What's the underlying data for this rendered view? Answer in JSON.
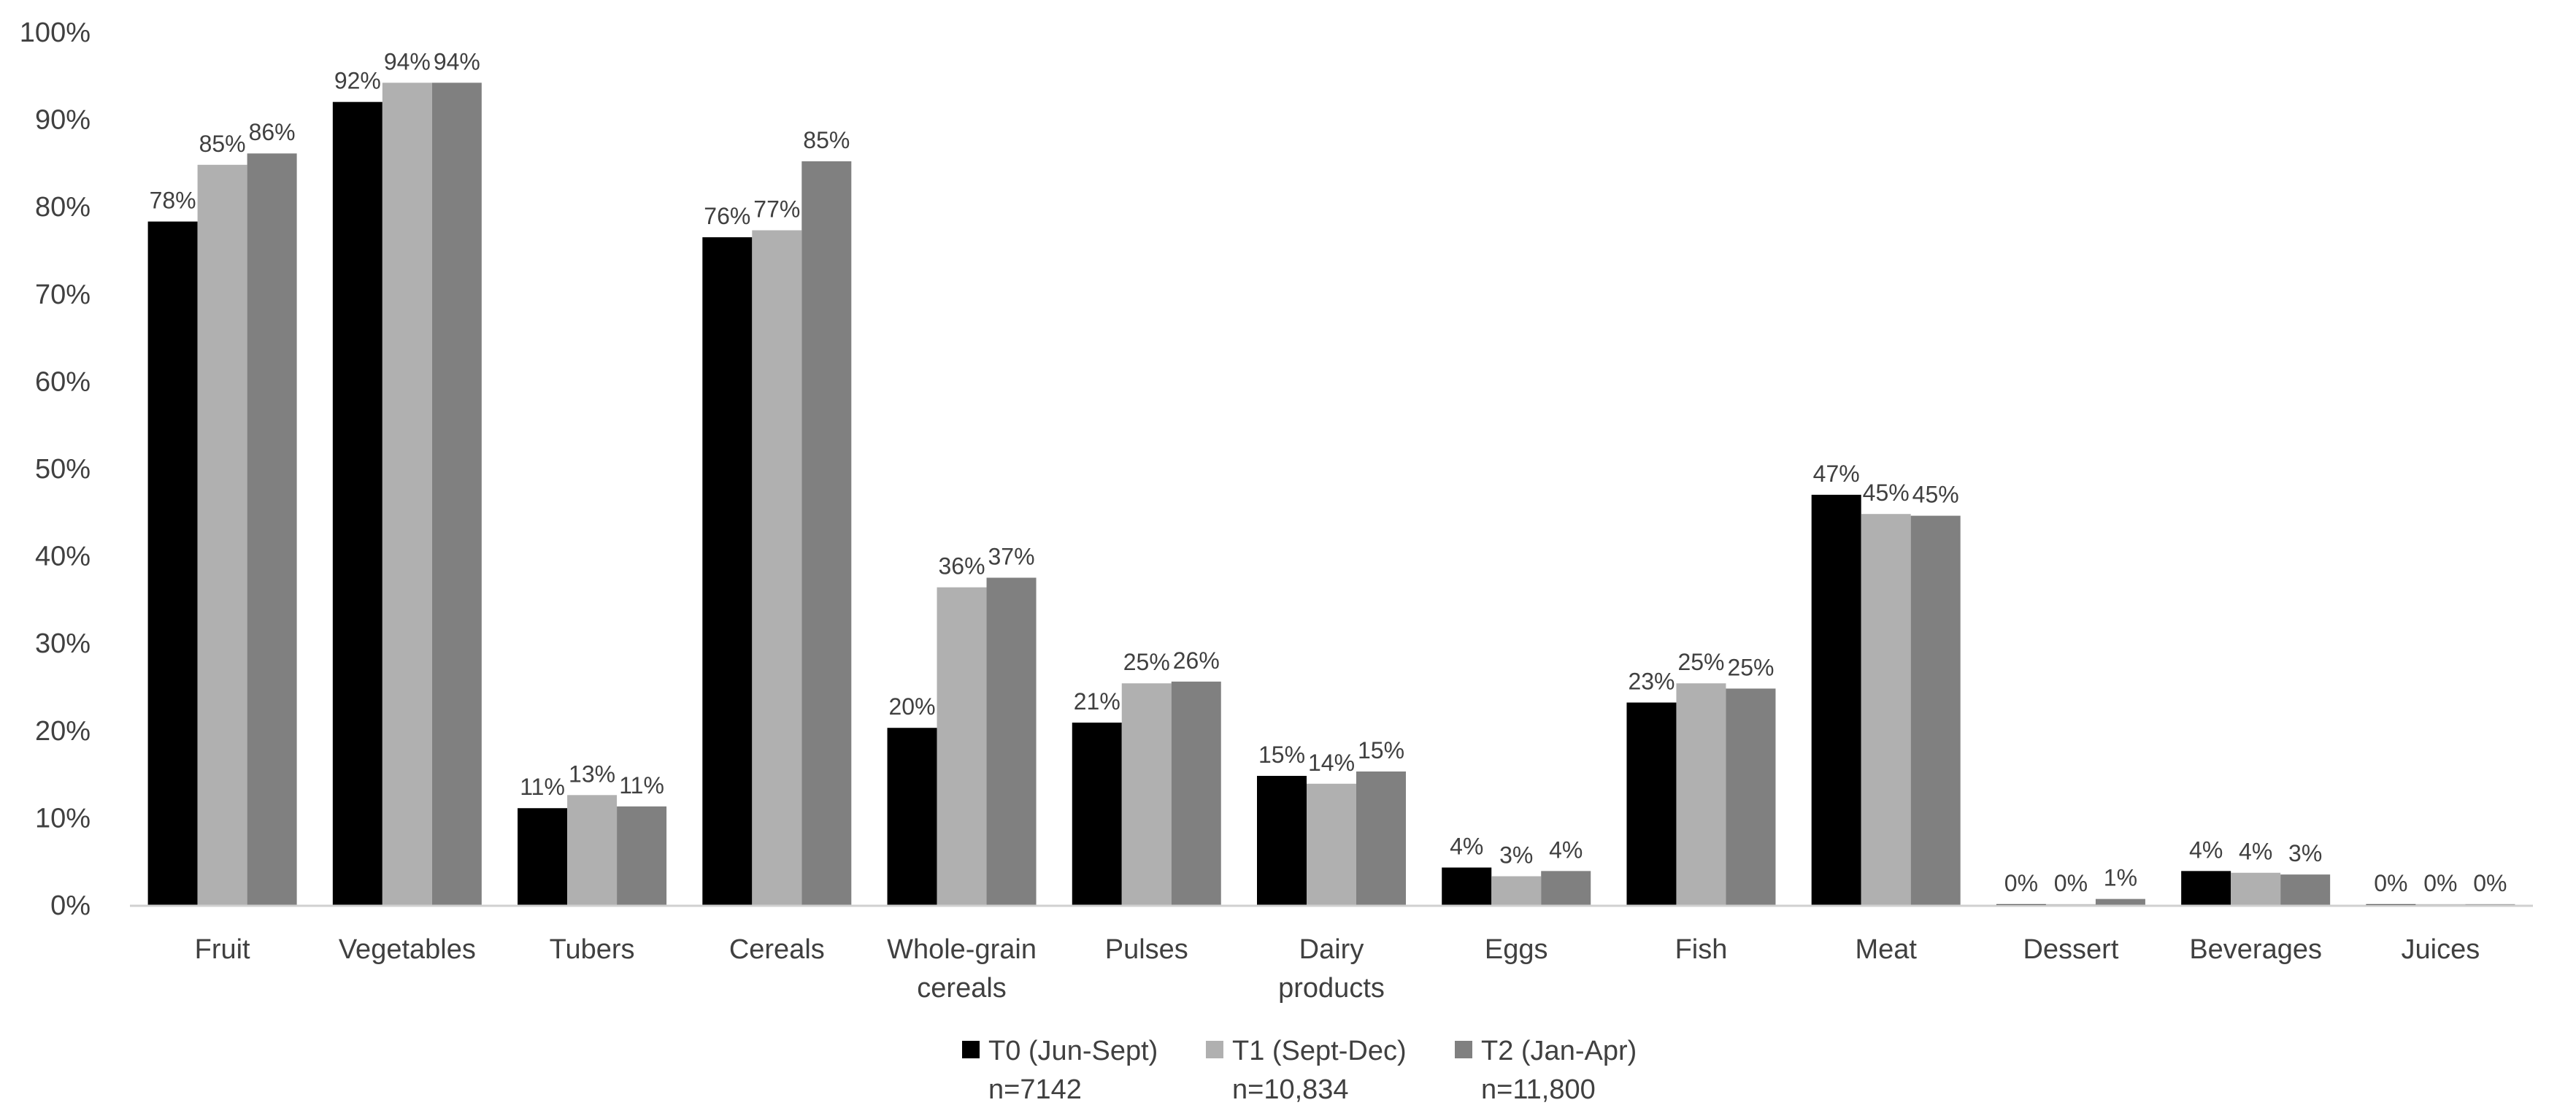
{
  "chart_data": {
    "type": "bar",
    "title": "",
    "xlabel": "",
    "ylabel": "",
    "ylim": [
      0,
      100
    ],
    "y_ticks": [
      "0%",
      "10%",
      "20%",
      "30%",
      "40%",
      "50%",
      "60%",
      "70%",
      "80%",
      "90%",
      "100%"
    ],
    "grid": false,
    "legend_position": "bottom",
    "categories": [
      [
        "Fruit"
      ],
      [
        "Vegetables"
      ],
      [
        "Tubers"
      ],
      [
        "Cereals"
      ],
      [
        "Whole-grain",
        "cereals"
      ],
      [
        "Pulses"
      ],
      [
        "Dairy",
        "products"
      ],
      [
        "Eggs"
      ],
      [
        "Fish"
      ],
      [
        "Meat"
      ],
      [
        "Dessert"
      ],
      [
        "Beverages"
      ],
      [
        "Juices"
      ]
    ],
    "series": [
      {
        "name": "T0 (Jun-Sept)",
        "n": "n=7142",
        "color": "#000000",
        "values": [
          78.3,
          92.0,
          11.1,
          76.5,
          20.3,
          20.9,
          14.8,
          4.3,
          23.2,
          47.0,
          0.1,
          3.9,
          0.1
        ],
        "labels": [
          "78%",
          "92%",
          "11%",
          "76%",
          "20%",
          "21%",
          "15%",
          "4%",
          "23%",
          "47%",
          "0%",
          "4%",
          "0%"
        ]
      },
      {
        "name": "T1 (Sept-Dec)",
        "n": "n=10,834",
        "color": "#b0b0b0",
        "values": [
          84.8,
          94.2,
          12.6,
          77.3,
          36.4,
          25.4,
          13.9,
          3.3,
          25.4,
          44.8,
          0.1,
          3.7,
          0.1
        ],
        "labels": [
          "85%",
          "94%",
          "13%",
          "77%",
          "36%",
          "25%",
          "14%",
          "3%",
          "25%",
          "45%",
          "0%",
          "4%",
          "0%"
        ]
      },
      {
        "name": "T2 (Jan-Apr)",
        "n": "n=11,800",
        "color": "#808080",
        "values": [
          86.1,
          94.2,
          11.3,
          85.2,
          37.5,
          25.6,
          15.3,
          3.9,
          24.8,
          44.6,
          0.7,
          3.5,
          0.1
        ],
        "labels": [
          "86%",
          "94%",
          "11%",
          "85%",
          "37%",
          "26%",
          "15%",
          "4%",
          "25%",
          "45%",
          "1%",
          "3%",
          "0%"
        ]
      }
    ]
  }
}
